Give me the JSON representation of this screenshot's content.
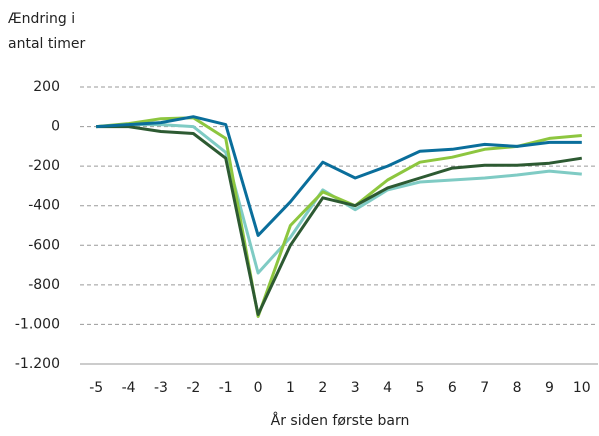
{
  "chart_data": {
    "type": "line",
    "ylabel": [
      "Ændring i",
      "antal timer"
    ],
    "xlabel": "År siden første barn",
    "x": [
      -5,
      -4,
      -3,
      -2,
      -1,
      0,
      1,
      2,
      3,
      4,
      5,
      6,
      7,
      8,
      9,
      10
    ],
    "series": [
      {
        "color": "#7fcbc4",
        "values": [
          0,
          10,
          10,
          0,
          -130,
          -740,
          -560,
          -320,
          -420,
          -320,
          -280,
          -270,
          -260,
          -245,
          -225,
          -240
        ]
      },
      {
        "color": "#8dc63f",
        "values": [
          0,
          15,
          40,
          45,
          -60,
          -960,
          -500,
          -330,
          -400,
          -270,
          -180,
          -155,
          -115,
          -100,
          -60,
          -45
        ]
      },
      {
        "color": "#2d5a32",
        "values": [
          0,
          0,
          -25,
          -35,
          -160,
          -950,
          -600,
          -360,
          -400,
          -310,
          -260,
          -210,
          -195,
          -195,
          -185,
          -160
        ]
      },
      {
        "color": "#0a6e9b",
        "values": [
          0,
          10,
          20,
          50,
          10,
          -550,
          -380,
          -180,
          -260,
          -200,
          -125,
          -115,
          -90,
          -100,
          -80,
          -80
        ]
      }
    ],
    "xlim": [
      -5.5,
      10.5
    ],
    "xticks": [
      -5,
      -4,
      -3,
      -2,
      -1,
      0,
      1,
      2,
      3,
      4,
      5,
      6,
      7,
      8,
      9,
      10
    ],
    "ylim": [
      -1200,
      200
    ],
    "yticks": [
      {
        "value": -1200,
        "label": "-1.200"
      },
      {
        "value": -1000,
        "label": "-1.000"
      },
      -800,
      -600,
      -400,
      -200,
      0,
      200
    ],
    "grid": true
  }
}
